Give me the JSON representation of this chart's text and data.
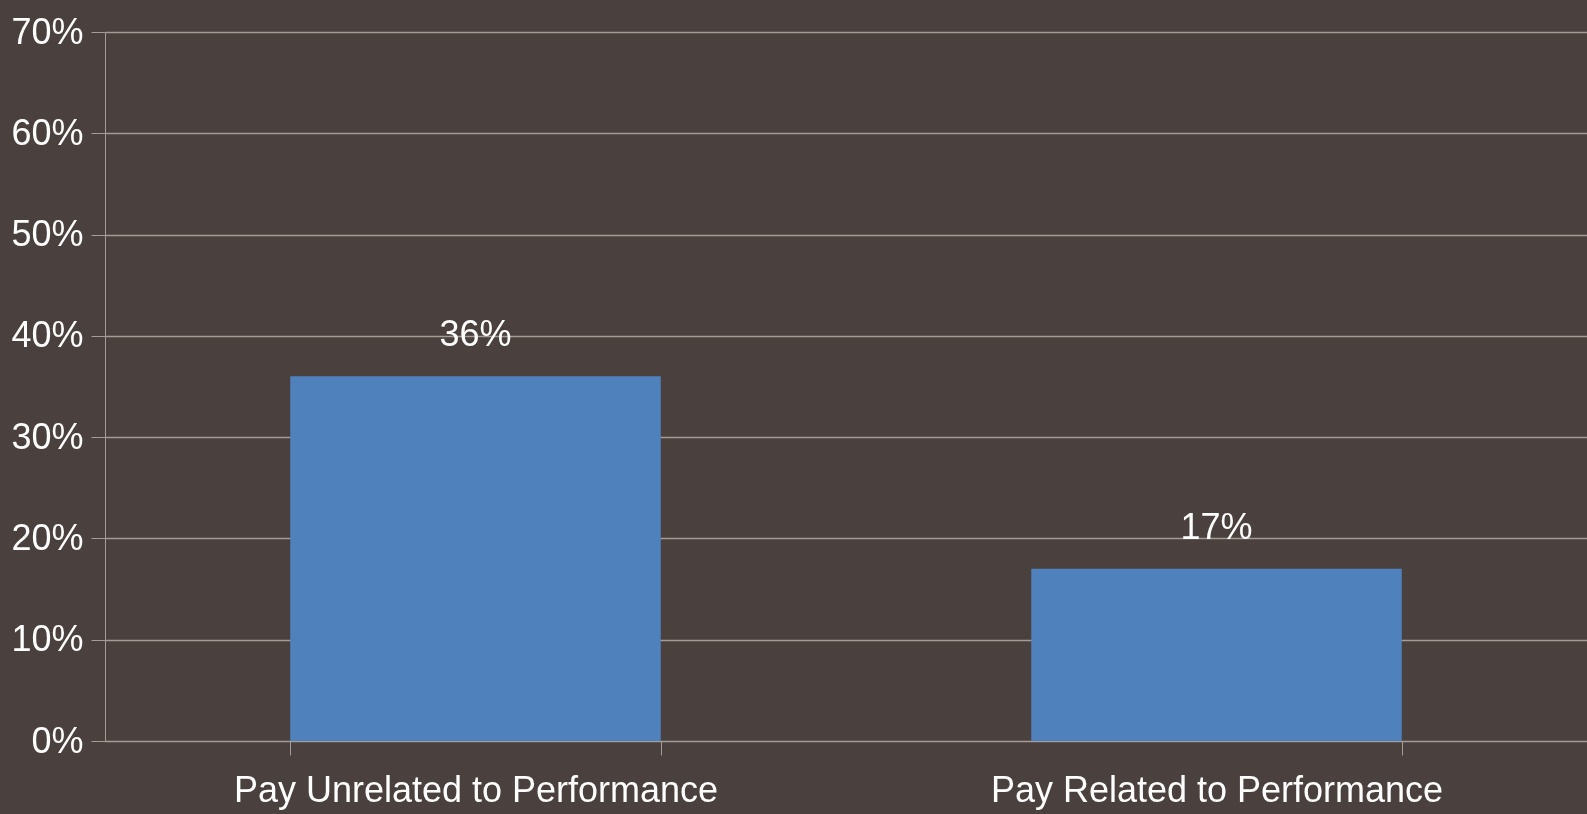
{
  "chart_data": {
    "type": "bar",
    "categories": [
      "Pay Unrelated to Performance",
      "Pay Related to Performance"
    ],
    "values": [
      36,
      17
    ],
    "color": "#4f81bd",
    "value_labels": [
      "36%",
      "17%"
    ],
    "ylim": [
      0,
      70
    ],
    "yticks": [
      {
        "value": 0,
        "label": "0%"
      },
      {
        "value": 10,
        "label": "10%"
      },
      {
        "value": 20,
        "label": "20%"
      },
      {
        "value": 30,
        "label": "30%"
      },
      {
        "value": 40,
        "label": "40%"
      },
      {
        "value": 50,
        "label": "50%"
      },
      {
        "value": 60,
        "label": "60%"
      },
      {
        "value": 70,
        "label": "70%"
      }
    ],
    "grid": "y"
  }
}
